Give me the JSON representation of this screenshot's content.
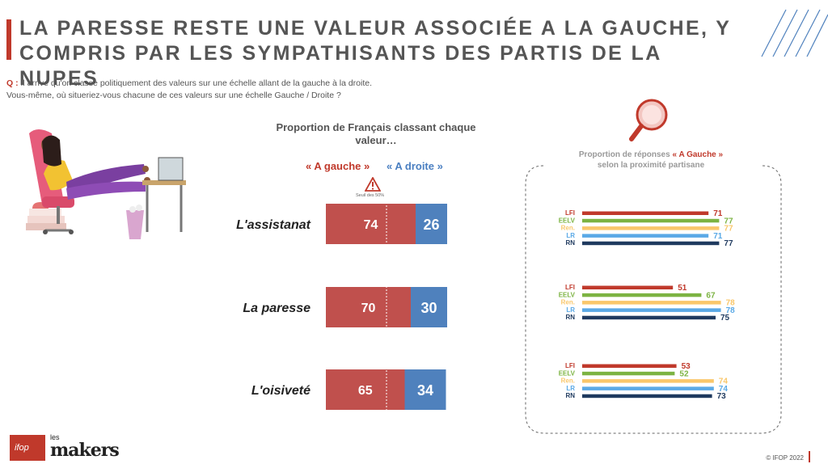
{
  "title": "LA PARESSE RESTE UNE VALEUR ASSOCIÉE A LA GAUCHE, Y COMPRIS PAR LES SYMPATHISANTS DES PARTIS DE LA NUPES",
  "question_prefix": "Q :",
  "question_line1": "Il arrive qu'on classe politiquement des valeurs sur une échelle allant de la gauche à la droite.",
  "question_line2": "Vous-même, où situeriez-vous chacune de ces valeurs sur une échelle Gauche / Droite ?",
  "left_subtitle": "Proportion de Français classant chaque valeur…",
  "legend_left": "« A gauche »",
  "legend_right": "« A droite »",
  "threshold_label": "Seuil des 50%",
  "right_subtitle_a": "Proportion de réponses",
  "right_subtitle_b": "« A Gauche »",
  "right_subtitle_c": "selon la proximité partisane",
  "footer": "© IFOP 2022",
  "logo_ifop": "ifop",
  "logo_les": "les",
  "logo_makers": "makers",
  "colors": {
    "gauche": "#c0504d",
    "droite": "#4f81bd",
    "LFI": "#c0392b",
    "EELV": "#7cb342",
    "Ren.": "#f9c76b",
    "LR": "#5aa9e6",
    "RN": "#1f3a5f"
  },
  "chart_data": [
    {
      "type": "bar",
      "stacked": true,
      "orientation": "horizontal",
      "title": "Proportion de Français classant chaque valeur…",
      "categories": [
        "L'assistanat",
        "La paresse",
        "L'oisiveté"
      ],
      "series": [
        {
          "name": "« A gauche »",
          "values": [
            74,
            70,
            65
          ]
        },
        {
          "name": "« A droite »",
          "values": [
            26,
            30,
            34
          ]
        }
      ],
      "threshold": 50
    },
    {
      "type": "bar",
      "orientation": "horizontal",
      "title": "Proportion de réponses « A Gauche » selon la proximité partisane",
      "groups": [
        "L'assistanat",
        "La paresse",
        "L'oisiveté"
      ],
      "parties": [
        "LFI",
        "EELV",
        "Ren.",
        "LR",
        "RN"
      ],
      "values": [
        [
          71,
          77,
          77,
          71,
          77
        ],
        [
          51,
          67,
          78,
          78,
          75
        ],
        [
          53,
          52,
          74,
          74,
          73
        ]
      ],
      "xlim": [
        0,
        100
      ]
    }
  ]
}
